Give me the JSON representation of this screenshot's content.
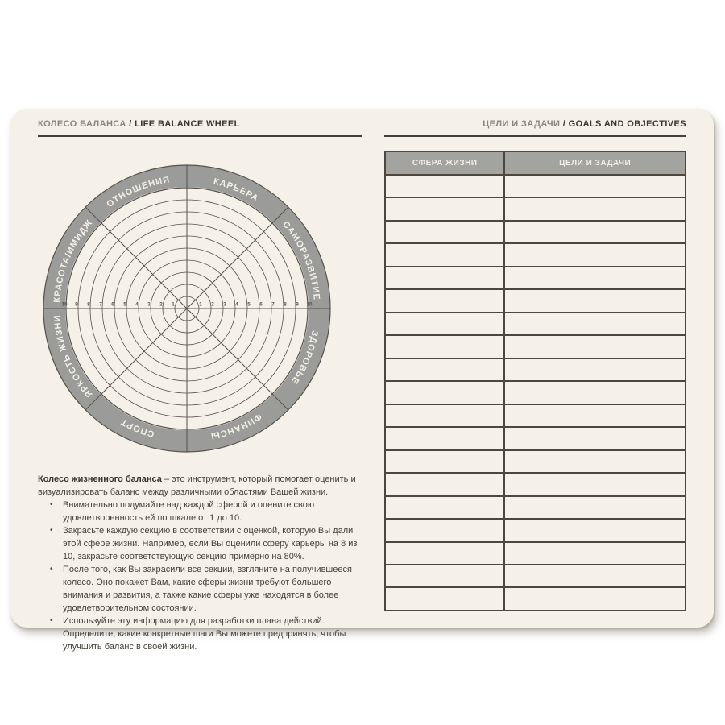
{
  "page": {
    "separator": " / ",
    "left_header": {
      "ru": "КОЛЕСО БАЛАНСА",
      "en": "LIFE BALANCE WHEEL"
    },
    "right_header": {
      "ru": "ЦЕЛИ И ЗАДАЧИ",
      "en": "GOALS AND OBJECTIVES"
    }
  },
  "wheel": {
    "labels": [
      "ОТНОШЕНИЯ",
      "КАРЬЕРА",
      "САМОРАЗВИТИЕ",
      "ЗДОРОВЬЕ",
      "ФИНАНСЫ",
      "СПОРТ",
      "ЯРКОСТЬ ЖИЗНИ",
      "КРАСОТА/ИМИДЖ"
    ],
    "scale_min": 1,
    "scale_max": 10,
    "axis_numbers_left": [
      "10",
      "9",
      "8",
      "7",
      "6",
      "5",
      "4",
      "3",
      "2",
      "1"
    ],
    "axis_numbers_right": [
      "1",
      "2",
      "3",
      "4",
      "5",
      "6",
      "7",
      "8",
      "9",
      "10"
    ],
    "colors": {
      "band": "#9b9b99",
      "band_text": "#f3f0e9",
      "line": "#56524b"
    }
  },
  "table": {
    "headers": [
      "СФЕРА ЖИЗНИ",
      "ЦЕЛИ И ЗАДАЧИ"
    ],
    "row_count": 19,
    "header_bg": "#a3a3a0",
    "border_color": "#4c4840"
  },
  "description": {
    "intro_bold": "Колесо жизненного баланса",
    "intro_rest": " – это инструмент, который помогает оценить и визуализировать баланс между различными областями Вашей жизни.",
    "bullets": [
      "Внимательно подумайте над каждой сферой и оцените свою удовлетворенность ей по шкале от 1 до 10.",
      "Закрасьте каждую секцию в соответствии с оценкой, которую Вы дали этой сфере жизни. Например, если Вы оценили сферу карьеры на 8 из 10, закрасьте соответствующую секцию примерно на 80%.",
      "После того, как Вы закрасили все секции, взгляните на получившееся колесо. Оно покажет Вам, какие сферы жизни требуют большего внимания и развития, а также какие сферы уже находятся в более удовлетворительном состоянии.",
      "Используйте эту информацию для разработки плана действий. Определите, какие конкретные шаги Вы можете предпринять, чтобы улучшить баланс в своей жизни."
    ]
  }
}
